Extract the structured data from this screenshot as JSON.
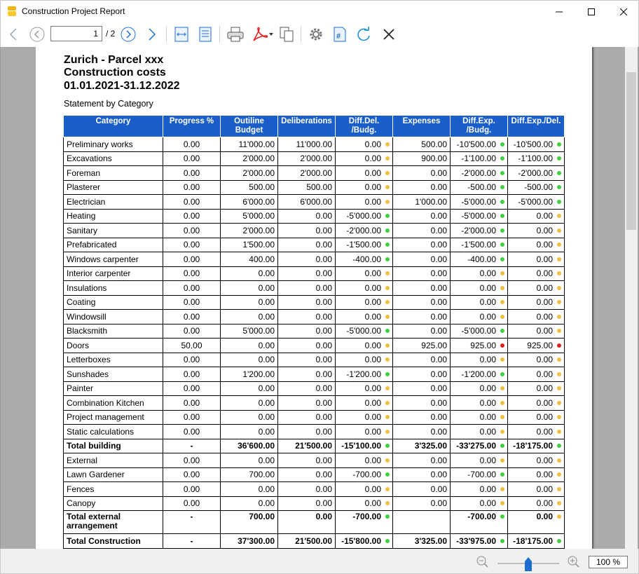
{
  "window": {
    "title": "Construction Project Report"
  },
  "toolbar": {
    "page_current": "1",
    "page_total": "/ 2"
  },
  "report": {
    "title_line1": "Zurich - Parcel xxx",
    "title_line2": "Construction costs",
    "title_line3": "01.01.2021-31.12.2022",
    "subtitle": "Statement by Category",
    "columns": [
      "Category",
      "Progress %",
      "Outiline Budget",
      "Deliberations",
      "Diff.Del. /Budg.",
      "Expenses",
      "Diff.Exp. /Budg.",
      "Diff.Exp./Del."
    ],
    "rows": [
      {
        "category": "Preliminary works",
        "progress": "0.00",
        "budget": "11'000.00",
        "deliberations": "11'000.00",
        "diff_del": "0.00",
        "diff_del_status": "yellow",
        "expenses": "500.00",
        "diff_exp": "-10'500.00",
        "diff_exp_status": "green",
        "diff_exp_del": "-10'500.00",
        "diff_exp_del_status": "green"
      },
      {
        "category": "Excavations",
        "progress": "0.00",
        "budget": "2'000.00",
        "deliberations": "2'000.00",
        "diff_del": "0.00",
        "diff_del_status": "yellow",
        "expenses": "900.00",
        "diff_exp": "-1'100.00",
        "diff_exp_status": "green",
        "diff_exp_del": "-1'100.00",
        "diff_exp_del_status": "green"
      },
      {
        "category": "Foreman",
        "progress": "0.00",
        "budget": "2'000.00",
        "deliberations": "2'000.00",
        "diff_del": "0.00",
        "diff_del_status": "yellow",
        "expenses": "0.00",
        "diff_exp": "-2'000.00",
        "diff_exp_status": "green",
        "diff_exp_del": "-2'000.00",
        "diff_exp_del_status": "green"
      },
      {
        "category": "Plasterer",
        "progress": "0.00",
        "budget": "500.00",
        "deliberations": "500.00",
        "diff_del": "0.00",
        "diff_del_status": "yellow",
        "expenses": "0.00",
        "diff_exp": "-500.00",
        "diff_exp_status": "green",
        "diff_exp_del": "-500.00",
        "diff_exp_del_status": "green"
      },
      {
        "category": "Electrician",
        "progress": "0.00",
        "budget": "6'000.00",
        "deliberations": "6'000.00",
        "diff_del": "0.00",
        "diff_del_status": "yellow",
        "expenses": "1'000.00",
        "diff_exp": "-5'000.00",
        "diff_exp_status": "green",
        "diff_exp_del": "-5'000.00",
        "diff_exp_del_status": "green"
      },
      {
        "category": "Heating",
        "progress": "0.00",
        "budget": "5'000.00",
        "deliberations": "0.00",
        "diff_del": "-5'000.00",
        "diff_del_status": "green",
        "expenses": "0.00",
        "diff_exp": "-5'000.00",
        "diff_exp_status": "green",
        "diff_exp_del": "0.00",
        "diff_exp_del_status": "yellow"
      },
      {
        "category": "Sanitary",
        "progress": "0.00",
        "budget": "2'000.00",
        "deliberations": "0.00",
        "diff_del": "-2'000.00",
        "diff_del_status": "green",
        "expenses": "0.00",
        "diff_exp": "-2'000.00",
        "diff_exp_status": "green",
        "diff_exp_del": "0.00",
        "diff_exp_del_status": "yellow"
      },
      {
        "category": "Prefabricated",
        "progress": "0.00",
        "budget": "1'500.00",
        "deliberations": "0.00",
        "diff_del": "-1'500.00",
        "diff_del_status": "green",
        "expenses": "0.00",
        "diff_exp": "-1'500.00",
        "diff_exp_status": "green",
        "diff_exp_del": "0.00",
        "diff_exp_del_status": "yellow"
      },
      {
        "category": "Windows carpenter",
        "progress": "0.00",
        "budget": "400.00",
        "deliberations": "0.00",
        "diff_del": "-400.00",
        "diff_del_status": "green",
        "expenses": "0.00",
        "diff_exp": "-400.00",
        "diff_exp_status": "green",
        "diff_exp_del": "0.00",
        "diff_exp_del_status": "yellow"
      },
      {
        "category": "Interior carpenter",
        "progress": "0.00",
        "budget": "0.00",
        "deliberations": "0.00",
        "diff_del": "0.00",
        "diff_del_status": "yellow",
        "expenses": "0.00",
        "diff_exp": "0.00",
        "diff_exp_status": "yellow",
        "diff_exp_del": "0.00",
        "diff_exp_del_status": "yellow"
      },
      {
        "category": "Insulations",
        "progress": "0.00",
        "budget": "0.00",
        "deliberations": "0.00",
        "diff_del": "0.00",
        "diff_del_status": "yellow",
        "expenses": "0.00",
        "diff_exp": "0.00",
        "diff_exp_status": "yellow",
        "diff_exp_del": "0.00",
        "diff_exp_del_status": "yellow"
      },
      {
        "category": "Coating",
        "progress": "0.00",
        "budget": "0.00",
        "deliberations": "0.00",
        "diff_del": "0.00",
        "diff_del_status": "yellow",
        "expenses": "0.00",
        "diff_exp": "0.00",
        "diff_exp_status": "yellow",
        "diff_exp_del": "0.00",
        "diff_exp_del_status": "yellow"
      },
      {
        "category": "Windowsill",
        "progress": "0.00",
        "budget": "0.00",
        "deliberations": "0.00",
        "diff_del": "0.00",
        "diff_del_status": "yellow",
        "expenses": "0.00",
        "diff_exp": "0.00",
        "diff_exp_status": "yellow",
        "diff_exp_del": "0.00",
        "diff_exp_del_status": "yellow"
      },
      {
        "category": "Blacksmith",
        "progress": "0.00",
        "budget": "5'000.00",
        "deliberations": "0.00",
        "diff_del": "-5'000.00",
        "diff_del_status": "green",
        "expenses": "0.00",
        "diff_exp": "-5'000.00",
        "diff_exp_status": "green",
        "diff_exp_del": "0.00",
        "diff_exp_del_status": "yellow"
      },
      {
        "category": "Doors",
        "progress": "50.00",
        "budget": "0.00",
        "deliberations": "0.00",
        "diff_del": "0.00",
        "diff_del_status": "yellow",
        "expenses": "925.00",
        "diff_exp": "925.00",
        "diff_exp_status": "red",
        "diff_exp_del": "925.00",
        "diff_exp_del_status": "red"
      },
      {
        "category": "Letterboxes",
        "progress": "0.00",
        "budget": "0.00",
        "deliberations": "0.00",
        "diff_del": "0.00",
        "diff_del_status": "yellow",
        "expenses": "0.00",
        "diff_exp": "0.00",
        "diff_exp_status": "yellow",
        "diff_exp_del": "0.00",
        "diff_exp_del_status": "yellow"
      },
      {
        "category": "Sunshades",
        "progress": "0.00",
        "budget": "1'200.00",
        "deliberations": "0.00",
        "diff_del": "-1'200.00",
        "diff_del_status": "green",
        "expenses": "0.00",
        "diff_exp": "-1'200.00",
        "diff_exp_status": "green",
        "diff_exp_del": "0.00",
        "diff_exp_del_status": "yellow"
      },
      {
        "category": "Painter",
        "progress": "0.00",
        "budget": "0.00",
        "deliberations": "0.00",
        "diff_del": "0.00",
        "diff_del_status": "yellow",
        "expenses": "0.00",
        "diff_exp": "0.00",
        "diff_exp_status": "yellow",
        "diff_exp_del": "0.00",
        "diff_exp_del_status": "yellow"
      },
      {
        "category": "Combination Kitchen",
        "progress": "0.00",
        "budget": "0.00",
        "deliberations": "0.00",
        "diff_del": "0.00",
        "diff_del_status": "yellow",
        "expenses": "0.00",
        "diff_exp": "0.00",
        "diff_exp_status": "yellow",
        "diff_exp_del": "0.00",
        "diff_exp_del_status": "yellow"
      },
      {
        "category": "Project management",
        "progress": "0.00",
        "budget": "0.00",
        "deliberations": "0.00",
        "diff_del": "0.00",
        "diff_del_status": "yellow",
        "expenses": "0.00",
        "diff_exp": "0.00",
        "diff_exp_status": "yellow",
        "diff_exp_del": "0.00",
        "diff_exp_del_status": "yellow"
      },
      {
        "category": "Static calculations",
        "progress": "0.00",
        "budget": "0.00",
        "deliberations": "0.00",
        "diff_del": "0.00",
        "diff_del_status": "yellow",
        "expenses": "0.00",
        "diff_exp": "0.00",
        "diff_exp_status": "yellow",
        "diff_exp_del": "0.00",
        "diff_exp_del_status": "yellow"
      },
      {
        "category": "Total building",
        "progress": "-",
        "budget": "36'600.00",
        "deliberations": "21'500.00",
        "diff_del": "-15'100.00",
        "diff_del_status": "green",
        "expenses": "3'325.00",
        "diff_exp": "-33'275.00",
        "diff_exp_status": "green",
        "diff_exp_del": "-18'175.00",
        "diff_exp_del_status": "green",
        "total": true
      },
      {
        "category": "External",
        "progress": "0.00",
        "budget": "0.00",
        "deliberations": "0.00",
        "diff_del": "0.00",
        "diff_del_status": "yellow",
        "expenses": "0.00",
        "diff_exp": "0.00",
        "diff_exp_status": "yellow",
        "diff_exp_del": "0.00",
        "diff_exp_del_status": "yellow"
      },
      {
        "category": "Lawn Gardener",
        "progress": "0.00",
        "budget": "700.00",
        "deliberations": "0.00",
        "diff_del": "-700.00",
        "diff_del_status": "green",
        "expenses": "0.00",
        "diff_exp": "-700.00",
        "diff_exp_status": "green",
        "diff_exp_del": "0.00",
        "diff_exp_del_status": "yellow"
      },
      {
        "category": "Fences",
        "progress": "0.00",
        "budget": "0.00",
        "deliberations": "0.00",
        "diff_del": "0.00",
        "diff_del_status": "yellow",
        "expenses": "0.00",
        "diff_exp": "0.00",
        "diff_exp_status": "yellow",
        "diff_exp_del": "0.00",
        "diff_exp_del_status": "yellow"
      },
      {
        "category": "Canopy",
        "progress": "0.00",
        "budget": "0.00",
        "deliberations": "0.00",
        "diff_del": "0.00",
        "diff_del_status": "yellow",
        "expenses": "0.00",
        "diff_exp": "0.00",
        "diff_exp_status": "yellow",
        "diff_exp_del": "0.00",
        "diff_exp_del_status": "yellow"
      },
      {
        "category": "Total external arrangement",
        "progress": "-",
        "budget": "700.00",
        "deliberations": "0.00",
        "diff_del": "-700.00",
        "diff_del_status": "green",
        "expenses": "",
        "diff_exp": "-700.00",
        "diff_exp_status": "green",
        "diff_exp_del": "0.00",
        "diff_exp_del_status": "yellow",
        "total": true,
        "tall": true
      },
      {
        "category": "Total Construction",
        "progress": "-",
        "budget": "37'300.00",
        "deliberations": "21'500.00",
        "diff_del": "-15'800.00",
        "diff_del_status": "green",
        "expenses": "3'325.00",
        "diff_exp": "-33'975.00",
        "diff_exp_status": "green",
        "diff_exp_del": "-18'175.00",
        "diff_exp_del_status": "green",
        "total": true
      }
    ]
  },
  "statusbar": {
    "zoom_level": "100 %",
    "zoom_percent": 100
  },
  "colors": {
    "header_bg": "#1a5fc9",
    "status_green": "#3fcf3f",
    "status_yellow": "#f0c040",
    "status_red": "#e02020",
    "pdf_red": "#e02020",
    "app_icon_yellow": "#f2b705"
  },
  "icons": [
    "app-icon",
    "minimize-icon",
    "maximize-icon",
    "close-icon",
    "back-arrow-icon",
    "prev-page-icon",
    "next-page-icon",
    "forward-arrow-icon",
    "fit-width-icon",
    "fit-page-icon",
    "print-icon",
    "pdf-export-icon",
    "copy-icon",
    "settings-icon",
    "page-number-icon",
    "refresh-icon",
    "close-report-icon",
    "zoom-out-icon",
    "zoom-in-icon"
  ]
}
